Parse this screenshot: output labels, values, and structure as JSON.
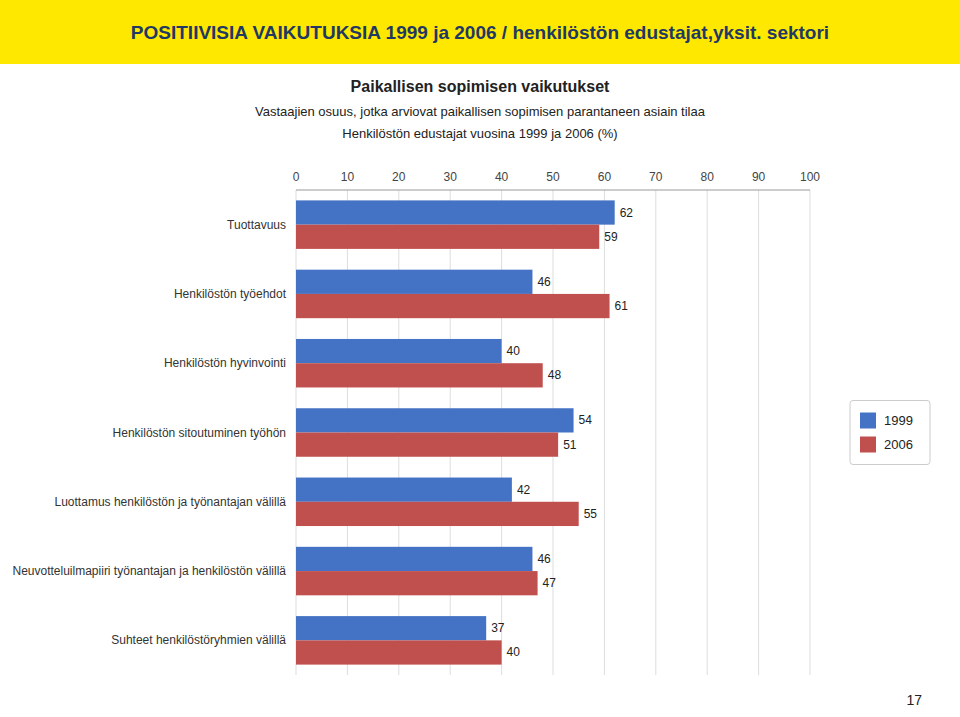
{
  "chart_data": {
    "type": "bar",
    "orientation": "horizontal",
    "title": "POSITIIVISIA  VAIKUTUKSIA 1999 ja 2006 / henkilöstön edustajat,yksit. sektori",
    "subtitle": [
      "Paikallisen sopimisen vaikutukset",
      "Vastaajien osuus, jotka arviovat paikallisen sopimisen parantaneen asiain tilaa",
      "Henkilöstön edustajat vuosina 1999 ja 2006 (%)"
    ],
    "annotations": [
      "17"
    ],
    "categories": [
      "Tuottavuus",
      "Henkilöstön työehdot",
      "Henkilöstön hyvinvointi",
      "Henkilöstön sitoutuminen työhön",
      "Luottamus henkilöstön ja työnantajan välillä",
      "Neuvotteluilmapiiri työnantajan ja henkilöstön välillä",
      "Suhteet henkilöstöryhmien välillä"
    ],
    "series": [
      {
        "name": "1999",
        "color": "#4472C4",
        "values": [
          62,
          46,
          40,
          54,
          42,
          46,
          37
        ]
      },
      {
        "name": "2006",
        "color": "#C0504D",
        "values": [
          59,
          61,
          48,
          51,
          55,
          47,
          40
        ]
      }
    ],
    "xlim": [
      0,
      100
    ],
    "xticks": [
      0,
      10,
      20,
      30,
      40,
      50,
      60,
      70,
      80,
      90,
      100
    ],
    "grid": true,
    "legend": "right",
    "data_labels": true
  }
}
